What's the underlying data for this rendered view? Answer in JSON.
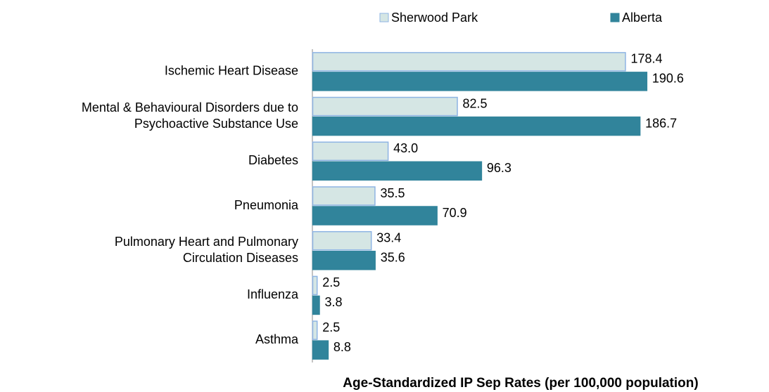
{
  "chart_data": {
    "type": "hbar",
    "x_axis_label": "Age-Standardized IP Sep Rates (per 100,000 population)",
    "categories": [
      "Ischemic Heart Disease",
      "Mental & Behavioural Disorders due to\nPsychoactive Substance Use",
      "Diabetes",
      "Pneumonia",
      "Pulmonary Heart and Pulmonary\nCirculation Diseases",
      "Influenza",
      "Asthma"
    ],
    "series": [
      {
        "name": "Sherwood Park",
        "color": "#d5e6e4",
        "stroke": "#8eb4e3",
        "values": [
          178.4,
          82.5,
          43.0,
          35.5,
          33.4,
          2.5,
          2.5
        ],
        "value_labels": [
          "178.4",
          "82.5",
          "43.0",
          "35.5",
          "33.4",
          "2.5",
          "2.5"
        ]
      },
      {
        "name": "Alberta",
        "color": "#31849b",
        "stroke": "#31849b",
        "values": [
          190.6,
          186.7,
          96.3,
          70.9,
          35.6,
          3.8,
          8.8
        ],
        "value_labels": [
          "190.6",
          "186.7",
          "96.3",
          "70.9",
          "35.6",
          "3.8",
          "8.8"
        ]
      }
    ],
    "xlim": [
      0,
      230
    ],
    "legend": "top"
  }
}
